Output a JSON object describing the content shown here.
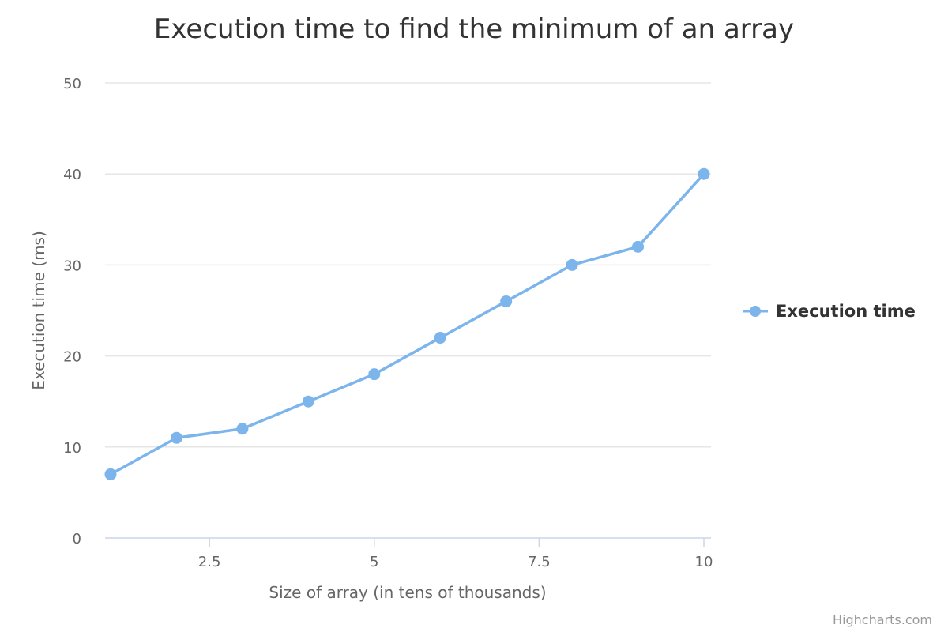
{
  "chart_data": {
    "type": "line",
    "title": "Execution time to find the minimum of an array",
    "xlabel": "Size of array (in tens of thousands)",
    "ylabel": "Execution time (ms)",
    "x_ticks": [
      "2.5",
      "5",
      "7.5",
      "10"
    ],
    "y_ticks": [
      "0",
      "10",
      "20",
      "30",
      "40",
      "50"
    ],
    "xlim": [
      1,
      10
    ],
    "ylim": [
      0,
      50
    ],
    "grid": true,
    "legend_position": "right",
    "series": [
      {
        "name": "Execution time",
        "color": "#7cb5ec",
        "x": [
          1,
          2,
          3,
          4,
          5,
          6,
          7,
          8,
          9,
          10
        ],
        "y": [
          7,
          11,
          12,
          15,
          18,
          22,
          26,
          30,
          32,
          40
        ]
      }
    ]
  },
  "credits": "Highcharts.com"
}
